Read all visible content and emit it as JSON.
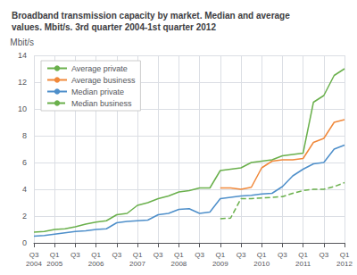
{
  "chart_data": {
    "type": "line",
    "title": "Broadband transmission capacity by market. Median and average\nvalues. Mbit/s. 3rd quarter 2004-1st quarter 2012",
    "ylabel": "Mbit/s",
    "categories": [
      "Q3\n2004",
      null,
      "Q1\n2005",
      null,
      "Q3",
      null,
      "Q1\n2006",
      null,
      "Q3",
      null,
      "Q1\n2007",
      null,
      "Q3",
      null,
      "Q1\n2008",
      null,
      "Q3",
      null,
      "Q1\n2009",
      null,
      "Q3",
      null,
      "Q1\n2010",
      null,
      "Q3",
      null,
      "Q1\n2011",
      null,
      "Q3",
      null,
      "Q1\n2012"
    ],
    "series": [
      {
        "name": "Average private",
        "color": "#6ab04c",
        "line_style": "solid",
        "values": [
          0.8,
          0.85,
          1.0,
          1.05,
          1.2,
          1.4,
          1.55,
          1.65,
          2.1,
          2.2,
          2.8,
          3.0,
          3.3,
          3.5,
          3.8,
          3.9,
          4.1,
          4.1,
          5.4,
          5.5,
          5.6,
          6.0,
          6.1,
          6.2,
          6.5,
          6.6,
          6.7,
          10.5,
          11.0,
          12.5,
          13.0
        ]
      },
      {
        "name": "Average business",
        "color": "#f0883a",
        "line_style": "solid",
        "values": [
          null,
          null,
          null,
          null,
          null,
          null,
          null,
          null,
          null,
          null,
          null,
          null,
          null,
          null,
          null,
          null,
          null,
          null,
          4.1,
          4.1,
          4.0,
          4.15,
          5.6,
          6.1,
          6.2,
          6.2,
          6.3,
          7.5,
          7.8,
          9.0,
          9.2
        ]
      },
      {
        "name": "Median private",
        "color": "#4e8fca",
        "line_style": "solid",
        "values": [
          0.5,
          0.55,
          0.65,
          0.75,
          0.85,
          0.9,
          1.0,
          1.05,
          1.5,
          1.6,
          1.65,
          1.7,
          2.1,
          2.2,
          2.5,
          2.55,
          2.2,
          2.3,
          3.3,
          3.4,
          3.5,
          3.55,
          3.65,
          3.7,
          4.2,
          5.0,
          5.5,
          5.9,
          6.0,
          7.0,
          7.3
        ]
      },
      {
        "name": "Median business",
        "color": "#6ab04c",
        "line_style": "dashed",
        "values": [
          null,
          null,
          null,
          null,
          null,
          null,
          null,
          null,
          null,
          null,
          null,
          null,
          null,
          null,
          null,
          null,
          null,
          null,
          1.8,
          1.85,
          3.3,
          3.3,
          3.35,
          3.4,
          3.45,
          3.7,
          3.9,
          4.0,
          4.0,
          4.2,
          4.5
        ]
      }
    ],
    "ylim": [
      0,
      14
    ],
    "yticks": [
      0,
      2,
      4,
      6,
      8,
      10,
      12,
      14
    ],
    "grid": true,
    "legend": "upper left"
  }
}
